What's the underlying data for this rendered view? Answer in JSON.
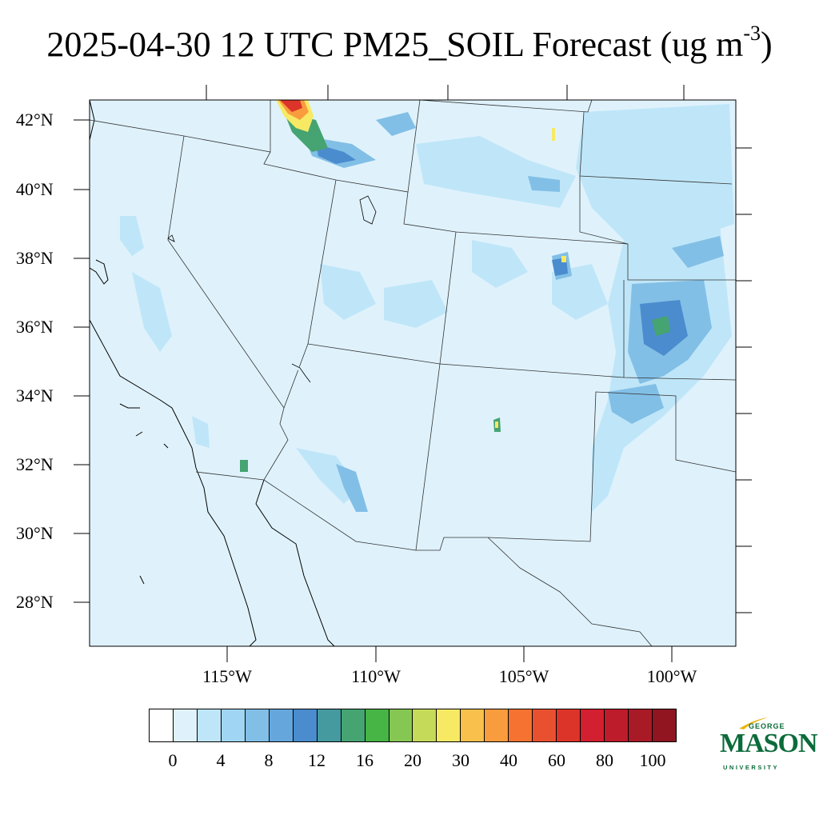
{
  "title": {
    "main": "2025-04-30 12 UTC PM25_SOIL Forecast (ug m",
    "sup": "-3",
    "close": ")"
  },
  "lat_labels": [
    "42°N",
    "40°N",
    "38°N",
    "36°N",
    "34°N",
    "32°N",
    "30°N",
    "28°N"
  ],
  "lon_labels": [
    "115°W",
    "110°W",
    "105°W",
    "100°W"
  ],
  "colorbar": {
    "colors": [
      "#ffffff",
      "#dff2fc",
      "#bfe6f8",
      "#a0d6f4",
      "#82bfe6",
      "#65a6dd",
      "#4a8ccd",
      "#449a9f",
      "#45a471",
      "#47b446",
      "#86c653",
      "#c5da58",
      "#f7e964",
      "#f9c04c",
      "#f89c3d",
      "#f57230",
      "#e95030",
      "#dc3429",
      "#d32030",
      "#bd1c2b",
      "#a91a27",
      "#901520"
    ],
    "tick_labels": [
      "0",
      "4",
      "8",
      "12",
      "16",
      "20",
      "30",
      "40",
      "60",
      "80",
      "100"
    ]
  },
  "logo": {
    "george": "GEORGE",
    "mason": "MASON",
    "university": "UNIVERSITY"
  }
}
